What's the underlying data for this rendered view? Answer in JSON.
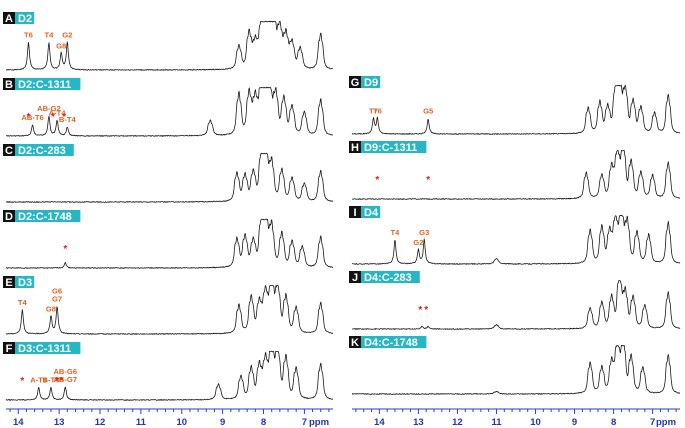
{
  "colors": {
    "letter_box": "#111111",
    "name_box": "#27b6c3",
    "peak_label": "#e0621e",
    "star": "#e3191f",
    "axis": "#2a3fc7",
    "trace": "#1a1a1a"
  },
  "chart_data": [
    {
      "type": "line",
      "panel_set": "left",
      "x_axis": {
        "ticks": [
          "14",
          "13",
          "12",
          "11",
          "10",
          "9",
          "8",
          "7"
        ],
        "unit": "ppm",
        "reversed": true,
        "xlim": [
          14.3,
          6.3
        ]
      },
      "spectra": [
        {
          "letter": "A",
          "name": "D2",
          "peaks": [
            {
              "label": "T6",
              "ppm": 13.75,
              "h": 0.62
            },
            {
              "label": "T4",
              "ppm": 13.25,
              "h": 0.62
            },
            {
              "label": "G8",
              "ppm": 12.95,
              "h": 0.38
            },
            {
              "label": "G2",
              "ppm": 12.8,
              "h": 0.62
            }
          ],
          "aliphatic": [
            {
              "ppm": 8.6,
              "h": 0.45
            },
            {
              "ppm": 8.35,
              "h": 0.7
            },
            {
              "ppm": 8.2,
              "h": 0.5
            },
            {
              "ppm": 8.05,
              "h": 0.8
            },
            {
              "ppm": 7.95,
              "h": 1.0
            },
            {
              "ppm": 7.85,
              "h": 0.9
            },
            {
              "ppm": 7.75,
              "h": 0.95
            },
            {
              "ppm": 7.6,
              "h": 0.8
            },
            {
              "ppm": 7.45,
              "h": 0.65
            },
            {
              "ppm": 7.3,
              "h": 0.5
            },
            {
              "ppm": 7.1,
              "h": 0.4
            },
            {
              "ppm": 6.6,
              "h": 0.7
            }
          ],
          "stars": []
        },
        {
          "letter": "B",
          "name": "D2:C-1311",
          "peaks": [
            {
              "label": "AB-T6",
              "ppm": 13.65,
              "h": 0.25
            },
            {
              "label": "AB-G2",
              "ppm": 13.25,
              "h": 0.45
            },
            {
              "label": "A-T4",
              "ppm": 13.05,
              "h": 0.35
            },
            {
              "label": "B-T4",
              "ppm": 12.8,
              "h": 0.2
            }
          ],
          "aliphatic": [
            {
              "ppm": 9.3,
              "h": 0.3
            },
            {
              "ppm": 8.6,
              "h": 0.8
            },
            {
              "ppm": 8.35,
              "h": 0.8
            },
            {
              "ppm": 8.2,
              "h": 0.7
            },
            {
              "ppm": 8.05,
              "h": 0.9
            },
            {
              "ppm": 7.95,
              "h": 1.0
            },
            {
              "ppm": 7.85,
              "h": 0.85
            },
            {
              "ppm": 7.7,
              "h": 0.8
            },
            {
              "ppm": 7.5,
              "h": 0.7
            },
            {
              "ppm": 7.3,
              "h": 0.55
            },
            {
              "ppm": 7.0,
              "h": 0.45
            },
            {
              "ppm": 6.6,
              "h": 0.7
            }
          ],
          "stars": [
            13.75,
            13.15,
            12.88
          ]
        },
        {
          "letter": "C",
          "name": "D2:C-283",
          "peaks": [],
          "aliphatic": [
            {
              "ppm": 8.65,
              "h": 0.55
            },
            {
              "ppm": 8.45,
              "h": 0.5
            },
            {
              "ppm": 8.25,
              "h": 0.55
            },
            {
              "ppm": 8.05,
              "h": 0.85
            },
            {
              "ppm": 7.95,
              "h": 1.0
            },
            {
              "ppm": 7.8,
              "h": 0.75
            },
            {
              "ppm": 7.55,
              "h": 0.6
            },
            {
              "ppm": 7.3,
              "h": 0.45
            },
            {
              "ppm": 7.0,
              "h": 0.35
            },
            {
              "ppm": 6.6,
              "h": 0.6
            }
          ],
          "stars": []
        },
        {
          "letter": "D",
          "name": "D2:C-1748",
          "peaks": [
            {
              "label": "",
              "ppm": 12.85,
              "h": 0.12
            }
          ],
          "aliphatic": [
            {
              "ppm": 8.65,
              "h": 0.55
            },
            {
              "ppm": 8.45,
              "h": 0.6
            },
            {
              "ppm": 8.25,
              "h": 0.5
            },
            {
              "ppm": 8.05,
              "h": 0.85
            },
            {
              "ppm": 7.95,
              "h": 1.0
            },
            {
              "ppm": 7.8,
              "h": 0.8
            },
            {
              "ppm": 7.55,
              "h": 0.65
            },
            {
              "ppm": 7.3,
              "h": 0.5
            },
            {
              "ppm": 7.05,
              "h": 0.4
            },
            {
              "ppm": 6.6,
              "h": 0.6
            }
          ],
          "stars": [
            12.85
          ]
        },
        {
          "letter": "E",
          "name": "D3",
          "peaks": [
            {
              "label": "T4",
              "ppm": 13.9,
              "h": 0.55
            },
            {
              "label": "G8",
              "ppm": 13.2,
              "h": 0.4
            },
            {
              "label": "G6\nG7",
              "ppm": 13.05,
              "h": 0.62
            }
          ],
          "aliphatic": [
            {
              "ppm": 8.6,
              "h": 0.55
            },
            {
              "ppm": 8.3,
              "h": 0.7
            },
            {
              "ppm": 8.1,
              "h": 0.6
            },
            {
              "ppm": 7.95,
              "h": 0.8
            },
            {
              "ppm": 7.8,
              "h": 1.0
            },
            {
              "ppm": 7.65,
              "h": 0.9
            },
            {
              "ppm": 7.45,
              "h": 0.7
            },
            {
              "ppm": 7.2,
              "h": 0.5
            },
            {
              "ppm": 6.6,
              "h": 0.6
            }
          ],
          "stars": []
        },
        {
          "letter": "F",
          "name": "D3:C-1311",
          "peaks": [
            {
              "label": "A-T4",
              "ppm": 13.5,
              "h": 0.28
            },
            {
              "label": "B-T4",
              "ppm": 13.2,
              "h": 0.28
            },
            {
              "label": "AB-G6\nAB-G7",
              "ppm": 12.85,
              "h": 0.3
            }
          ],
          "aliphatic": [
            {
              "ppm": 9.1,
              "h": 0.3
            },
            {
              "ppm": 8.55,
              "h": 0.45
            },
            {
              "ppm": 8.3,
              "h": 0.6
            },
            {
              "ppm": 8.1,
              "h": 0.65
            },
            {
              "ppm": 7.95,
              "h": 0.75
            },
            {
              "ppm": 7.8,
              "h": 1.0
            },
            {
              "ppm": 7.65,
              "h": 0.95
            },
            {
              "ppm": 7.45,
              "h": 0.8
            },
            {
              "ppm": 7.2,
              "h": 0.6
            },
            {
              "ppm": 6.6,
              "h": 0.7
            }
          ],
          "stars": [
            13.9,
            13.05,
            12.95
          ]
        }
      ]
    },
    {
      "type": "line",
      "panel_set": "right",
      "x_axis": {
        "ticks": [
          "14",
          "13",
          "12",
          "11",
          "10",
          "9",
          "8",
          "7"
        ],
        "unit": "ppm",
        "reversed": true,
        "xlim": [
          14.7,
          6.3
        ]
      },
      "spectra": [
        {
          "letter": "G",
          "name": "D9",
          "peaks": [
            {
              "label": "T7",
              "ppm": 14.15,
              "h": 0.35
            },
            {
              "label": "T6",
              "ppm": 14.05,
              "h": 0.35
            },
            {
              "label": "G5",
              "ppm": 12.75,
              "h": 0.35
            }
          ],
          "aliphatic": [
            {
              "ppm": 8.65,
              "h": 0.5
            },
            {
              "ppm": 8.35,
              "h": 0.6
            },
            {
              "ppm": 8.15,
              "h": 0.5
            },
            {
              "ppm": 7.95,
              "h": 0.8
            },
            {
              "ppm": 7.85,
              "h": 1.0
            },
            {
              "ppm": 7.7,
              "h": 0.85
            },
            {
              "ppm": 7.5,
              "h": 0.6
            },
            {
              "ppm": 7.3,
              "h": 0.5
            },
            {
              "ppm": 6.95,
              "h": 0.4
            },
            {
              "ppm": 6.6,
              "h": 0.75
            }
          ],
          "stars": []
        },
        {
          "letter": "H",
          "name": "D9:C-1311",
          "peaks": [],
          "aliphatic": [
            {
              "ppm": 8.7,
              "h": 0.5
            },
            {
              "ppm": 8.3,
              "h": 0.45
            },
            {
              "ppm": 8.05,
              "h": 0.6
            },
            {
              "ppm": 7.9,
              "h": 0.9
            },
            {
              "ppm": 7.75,
              "h": 1.0
            },
            {
              "ppm": 7.55,
              "h": 0.7
            },
            {
              "ppm": 7.3,
              "h": 0.5
            },
            {
              "ppm": 7.0,
              "h": 0.45
            },
            {
              "ppm": 6.6,
              "h": 0.7
            }
          ],
          "stars": [
            14.05,
            12.75
          ]
        },
        {
          "letter": "I",
          "name": "D4",
          "peaks": [
            {
              "label": "T4",
              "ppm": 13.6,
              "h": 0.55
            },
            {
              "label": "G2",
              "ppm": 13.0,
              "h": 0.32
            },
            {
              "label": "G3",
              "ppm": 12.85,
              "h": 0.55
            }
          ],
          "aliphatic": [
            {
              "ppm": 11.0,
              "h": 0.1
            },
            {
              "ppm": 8.6,
              "h": 0.65
            },
            {
              "ppm": 8.3,
              "h": 0.7
            },
            {
              "ppm": 8.1,
              "h": 0.6
            },
            {
              "ppm": 7.95,
              "h": 0.85
            },
            {
              "ppm": 7.8,
              "h": 1.0
            },
            {
              "ppm": 7.65,
              "h": 0.8
            },
            {
              "ppm": 7.4,
              "h": 0.6
            },
            {
              "ppm": 7.1,
              "h": 0.55
            },
            {
              "ppm": 6.6,
              "h": 0.8
            }
          ],
          "stars": []
        },
        {
          "letter": "J",
          "name": "D4:C-283",
          "peaks": [
            {
              "label": "",
              "ppm": 12.9,
              "h": 0.06
            },
            {
              "label": "",
              "ppm": 12.75,
              "h": 0.06
            }
          ],
          "aliphatic": [
            {
              "ppm": 11.0,
              "h": 0.08
            },
            {
              "ppm": 8.6,
              "h": 0.4
            },
            {
              "ppm": 8.3,
              "h": 0.5
            },
            {
              "ppm": 8.05,
              "h": 0.6
            },
            {
              "ppm": 7.85,
              "h": 1.0
            },
            {
              "ppm": 7.7,
              "h": 0.7
            },
            {
              "ppm": 7.5,
              "h": 0.6
            },
            {
              "ppm": 7.2,
              "h": 0.45
            },
            {
              "ppm": 6.6,
              "h": 0.7
            }
          ],
          "stars": [
            12.95,
            12.8
          ]
        },
        {
          "letter": "K",
          "name": "D4:C-1748",
          "peaks": [],
          "aliphatic": [
            {
              "ppm": 11.0,
              "h": 0.05
            },
            {
              "ppm": 8.6,
              "h": 0.6
            },
            {
              "ppm": 8.3,
              "h": 0.5
            },
            {
              "ppm": 8.05,
              "h": 0.6
            },
            {
              "ppm": 7.9,
              "h": 0.95
            },
            {
              "ppm": 7.75,
              "h": 1.0
            },
            {
              "ppm": 7.55,
              "h": 0.7
            },
            {
              "ppm": 7.25,
              "h": 0.5
            },
            {
              "ppm": 6.6,
              "h": 0.75
            }
          ],
          "stars": []
        }
      ]
    }
  ]
}
